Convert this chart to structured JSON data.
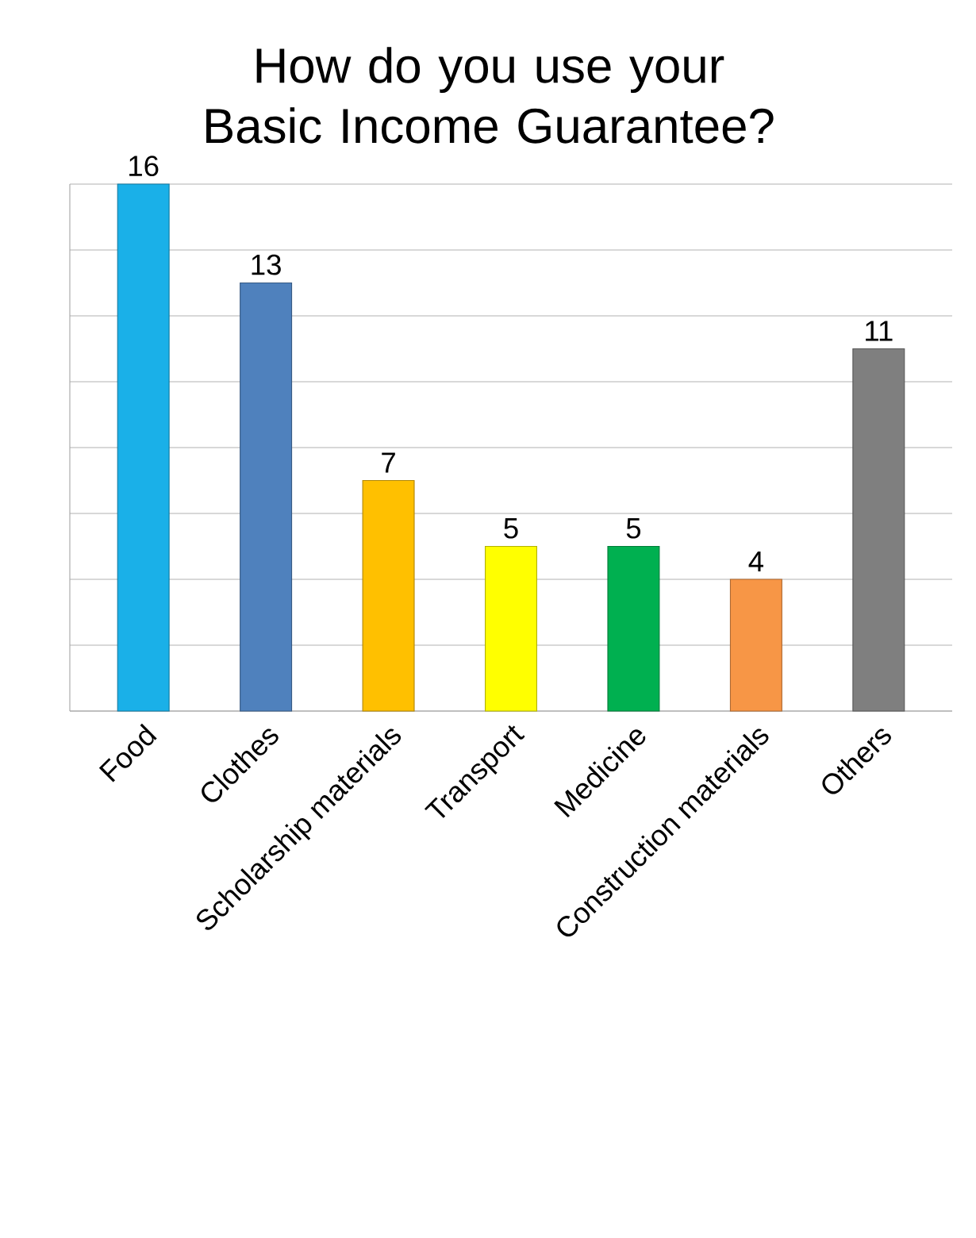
{
  "chart_data": {
    "type": "bar",
    "title": "How do you use your Basic Income Guarantee?",
    "categories": [
      "Food",
      "Clothes",
      "Scholarship materials",
      "Transport",
      "Medicine",
      "Construction materials",
      "Others"
    ],
    "values": [
      16,
      13,
      7,
      5,
      5,
      4,
      11
    ],
    "colors": [
      "#1ab0e8",
      "#4f81bd",
      "#ffc000",
      "#ffff00",
      "#00b050",
      "#f79646",
      "#7f7f7f"
    ],
    "ylim": [
      0,
      16
    ],
    "yticks": [
      {
        "value": 0,
        "label": null
      },
      {
        "value": 2,
        "label": null
      },
      {
        "value": 4,
        "label": null
      },
      {
        "value": 6,
        "label": null
      },
      {
        "value": 8,
        "label": null
      },
      {
        "value": 10,
        "label": null
      },
      {
        "value": 12,
        "label": null
      },
      {
        "value": 14,
        "label": null
      },
      {
        "value": 16,
        "label": null
      }
    ],
    "tick_labels": "x",
    "grid": "y",
    "data_labels": true
  }
}
